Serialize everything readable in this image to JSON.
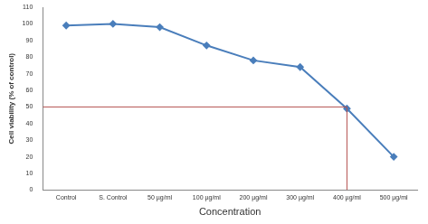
{
  "chart_data": {
    "type": "line",
    "x_label": "Concentration",
    "y_label": "Cell viability (% of control)",
    "categories": [
      "Control",
      "S. Control",
      "50 µg/ml",
      "100 µg/ml",
      "200 µg/ml",
      "300 µg/ml",
      "400 µg/ml",
      "500 µg/ml"
    ],
    "values": [
      99,
      100,
      98,
      87,
      78,
      74,
      49,
      20
    ],
    "color": "#4a7ebb",
    "marker": "diamond",
    "ylim": [
      0,
      110
    ],
    "yticks": [
      0,
      10,
      20,
      30,
      40,
      50,
      60,
      70,
      80,
      90,
      100,
      110
    ],
    "grid": false,
    "reference_lines": {
      "category": "400 µg/ml",
      "value": 50
    }
  }
}
